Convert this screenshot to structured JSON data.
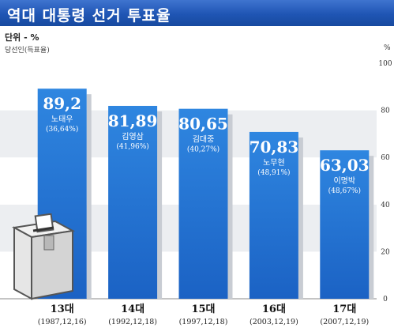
{
  "header": {
    "title": "역대 대통령 선거 투표율"
  },
  "labels": {
    "unit": "단위 - %",
    "subtitle": "당선인(득표율)",
    "percent_sign": "%"
  },
  "colors": {
    "bar_top": "#2a7fd9",
    "bar_bottom": "#1d66c7",
    "shadow": "#c9ced6",
    "header": "#2459b8"
  },
  "chart_data": {
    "type": "bar",
    "title": "역대 대통령 선거 투표율",
    "categories": [
      "13대",
      "14대",
      "15대",
      "16대",
      "17대"
    ],
    "dates": [
      "(1987,12,16)",
      "(1992,12,18)",
      "(1997,12,18)",
      "(2003,12,19)",
      "(2007,12,19)"
    ],
    "values": [
      89.2,
      81.89,
      80.65,
      70.83,
      63.03
    ],
    "value_labels": [
      "89,2",
      "81,89",
      "80,65",
      "70,83",
      "63,03"
    ],
    "winners": [
      "노태우",
      "김영삼",
      "김대중",
      "노무현",
      "이명박"
    ],
    "winner_shares": [
      "(36,64%)",
      "(41,96%)",
      "(40,27%)",
      "(48,91%)",
      "(48,67%)"
    ],
    "ylim": [
      0,
      100
    ],
    "yticks": [
      0,
      20,
      40,
      60,
      80,
      100
    ],
    "ylabel": "%",
    "grid": true
  }
}
